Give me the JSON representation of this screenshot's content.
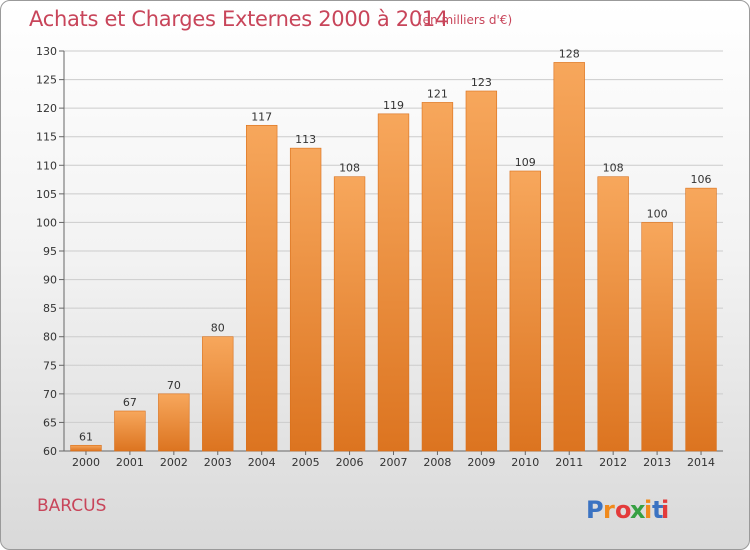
{
  "header": {
    "title": "Achats et Charges Externes 2000 à 2014",
    "unit_note": "(en milliers d'€)"
  },
  "location": "BARCUS",
  "logo": {
    "text": "Proxiti",
    "colors": [
      "#3b73c2",
      "#f08a1c",
      "#e33b3b",
      "#37a043",
      "#f08a1c",
      "#3b73c2",
      "#e33b3b"
    ]
  },
  "colors": {
    "bar": "#ef8a32",
    "bar_light": "#f6a65a",
    "bar_dark": "#d96f1a",
    "title": "#c8455a",
    "grid": "#cccccc"
  },
  "chart_data": {
    "type": "bar",
    "title": "Achats et Charges Externes 2000 à 2014",
    "subtitle": "(en milliers d'€)",
    "categories": [
      "2000",
      "2001",
      "2002",
      "2003",
      "2004",
      "2005",
      "2006",
      "2007",
      "2008",
      "2009",
      "2010",
      "2011",
      "2012",
      "2013",
      "2014"
    ],
    "values": [
      61,
      67,
      70,
      80,
      117,
      113,
      108,
      119,
      121,
      123,
      109,
      128,
      108,
      100,
      106
    ],
    "ylim": [
      60,
      130
    ],
    "yticks": [
      60,
      65,
      70,
      75,
      80,
      85,
      90,
      95,
      100,
      105,
      110,
      115,
      120,
      125,
      130
    ],
    "grid": true,
    "legend": "none"
  }
}
